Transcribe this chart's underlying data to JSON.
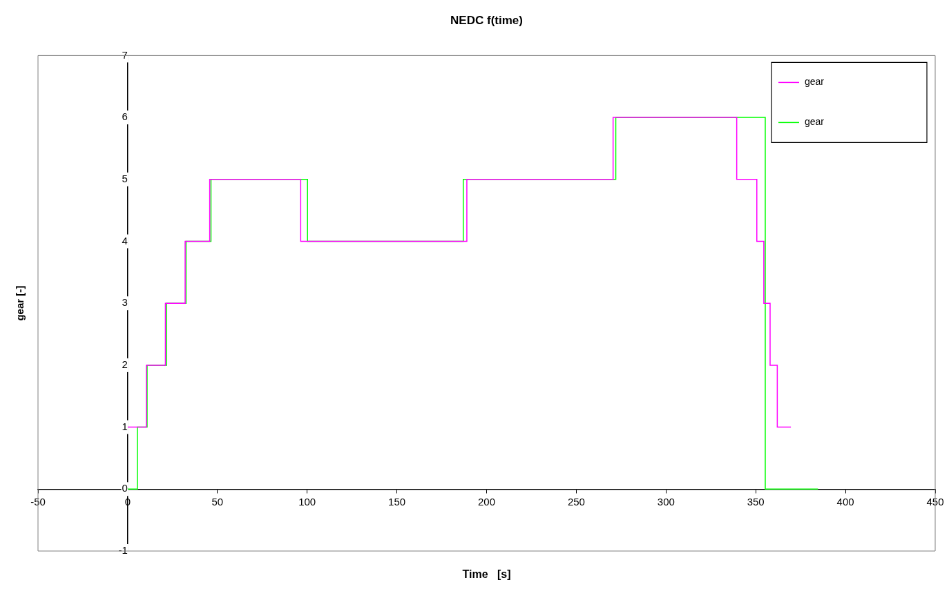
{
  "chart_data": {
    "type": "step",
    "title": "NEDC f(time)",
    "xlabel": "Time   [s]",
    "ylabel": "gear [-]",
    "xlim": [
      -50,
      450
    ],
    "xticks": [
      -50,
      0,
      50,
      100,
      150,
      200,
      250,
      300,
      350,
      400,
      450
    ],
    "ylim": [
      -1,
      7
    ],
    "yticks": [
      -1,
      0,
      1,
      2,
      3,
      4,
      5,
      6,
      7
    ],
    "grid": false,
    "legend": "top right",
    "marker": "none",
    "line_style": "solid",
    "series": [
      {
        "name": "gear",
        "color": "#ff00ff",
        "x": [
          0,
          10.4,
          21,
          32,
          45.7,
          96.4,
          189,
          270.5,
          339.4,
          350.6,
          354.5,
          358,
          362,
          369.6
        ],
        "values": [
          1,
          2,
          3,
          4,
          5,
          4,
          5,
          6,
          5,
          4,
          3,
          2,
          1,
          1
        ]
      },
      {
        "name": "gear",
        "color": "#00ff00",
        "x": [
          0,
          5.4,
          10.8,
          21.7,
          32.5,
          46.4,
          100.2,
          187,
          272,
          355.3,
          384.7
        ],
        "values": [
          0,
          1,
          2,
          3,
          4,
          5,
          4,
          5,
          6,
          0,
          0
        ]
      }
    ]
  }
}
